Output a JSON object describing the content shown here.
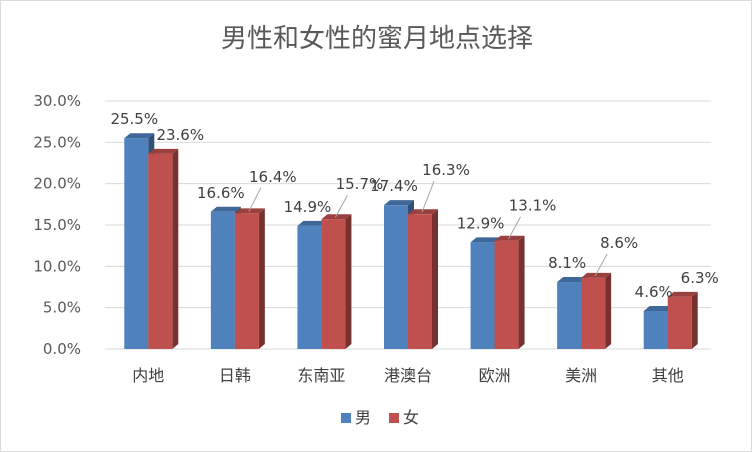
{
  "chart_data": {
    "type": "bar",
    "title": "男性和女性的蜜月地点选择",
    "categories": [
      "内地",
      "日韩",
      "东南亚",
      "港澳台",
      "欧洲",
      "美洲",
      "其他"
    ],
    "series": [
      {
        "name": "男",
        "values": [
          25.5,
          16.6,
          14.9,
          17.4,
          12.9,
          8.1,
          4.6
        ],
        "labels": [
          "25.5%",
          "16.6%",
          "14.9%",
          "17.4%",
          "12.9%",
          "8.1%",
          "4.6%"
        ],
        "color": "#4F81BD"
      },
      {
        "name": "女",
        "values": [
          23.6,
          16.4,
          15.7,
          16.3,
          13.1,
          8.6,
          6.3
        ],
        "labels": [
          "23.6%",
          "16.4%",
          "15.7%",
          "16.3%",
          "13.1%",
          "8.6%",
          "6.3%"
        ],
        "color": "#C0504D"
      }
    ],
    "ylim": [
      0,
      30
    ],
    "yticks": [
      "0.0%",
      "5.0%",
      "10.0%",
      "15.0%",
      "20.0%",
      "25.0%",
      "30.0%"
    ],
    "grid": true,
    "legend_position": "bottom"
  }
}
